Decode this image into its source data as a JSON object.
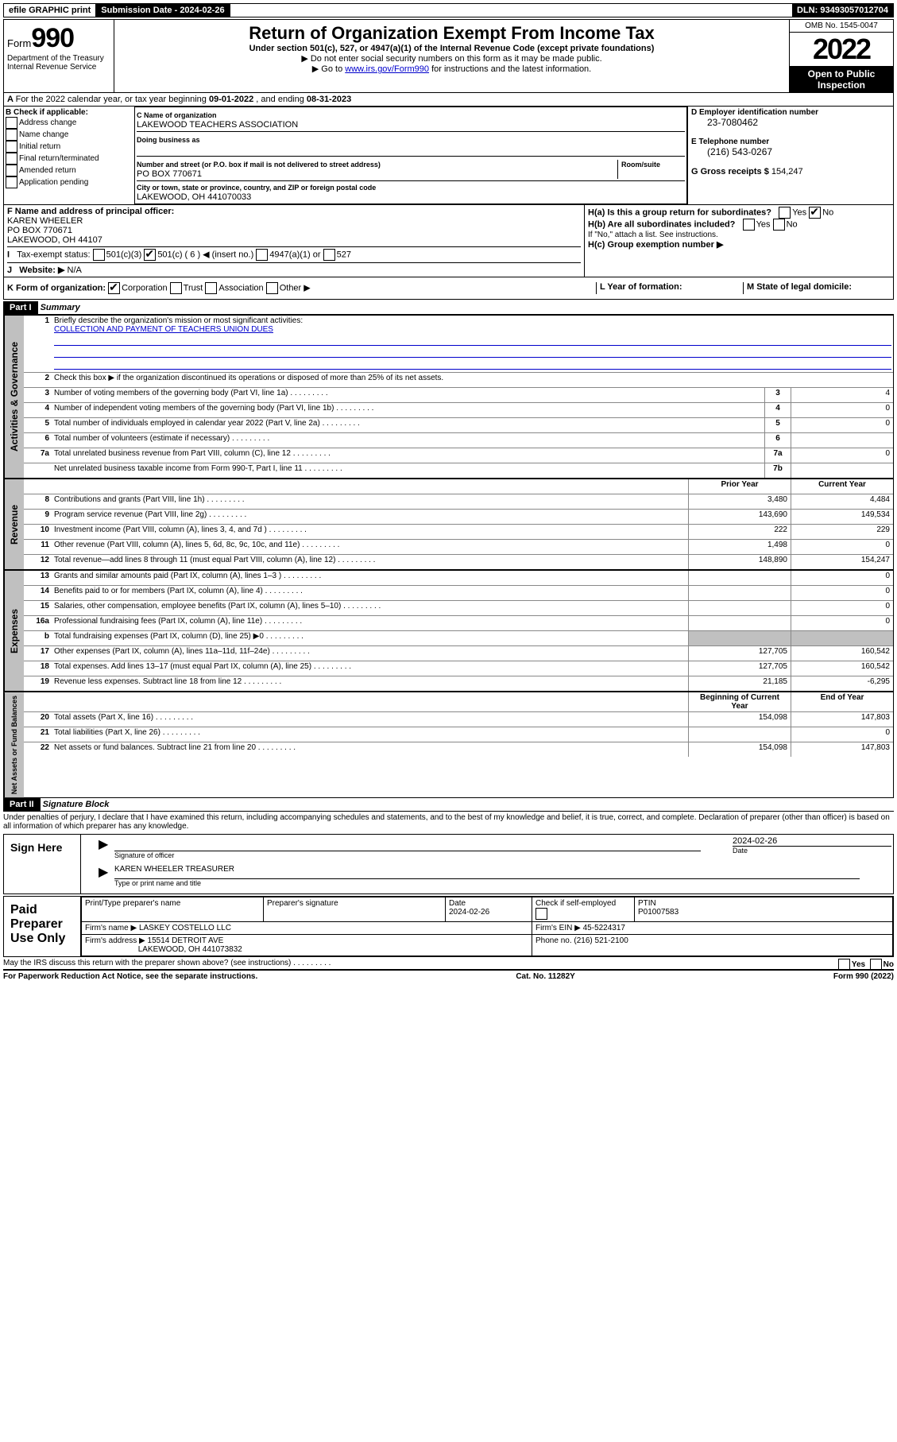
{
  "topbar": {
    "efile": "efile GRAPHIC print",
    "submission_label": "Submission Date - 2024-02-26",
    "dln_label": "DLN: 93493057012704"
  },
  "header": {
    "form_prefix": "Form",
    "form_number": "990",
    "title": "Return of Organization Exempt From Income Tax",
    "subtitle": "Under section 501(c), 527, or 4947(a)(1) of the Internal Revenue Code (except private foundations)",
    "instr1": "▶ Do not enter social security numbers on this form as it may be made public.",
    "instr2_pre": "▶ Go to ",
    "instr2_link": "www.irs.gov/Form990",
    "instr2_post": " for instructions and the latest information.",
    "dept": "Department of the Treasury Internal Revenue Service",
    "omb": "OMB No. 1545-0047",
    "year": "2022",
    "open": "Open to Public Inspection"
  },
  "section_a": {
    "text_pre": "For the 2022 calendar year, or tax year beginning ",
    "begin": "09-01-2022",
    "mid": " , and ending ",
    "end": "08-31-2023"
  },
  "col_b": {
    "label": "B Check if applicable:",
    "items": [
      "Address change",
      "Name change",
      "Initial return",
      "Final return/terminated",
      "Amended return",
      "Application pending"
    ]
  },
  "col_c": {
    "name_label": "C Name of organization",
    "name": "LAKEWOOD TEACHERS ASSOCIATION",
    "dba_label": "Doing business as",
    "addr_label": "Number and street (or P.O. box if mail is not delivered to street address)",
    "room_label": "Room/suite",
    "addr": "PO BOX 770671",
    "city_label": "City or town, state or province, country, and ZIP or foreign postal code",
    "city": "LAKEWOOD, OH  441070033"
  },
  "col_d": {
    "ein_label": "D Employer identification number",
    "ein": "23-7080462",
    "phone_label": "E Telephone number",
    "phone": "(216) 543-0267",
    "gross_label": "G Gross receipts $",
    "gross": "154,247"
  },
  "row_f": {
    "label": "F Name and address of principal officer:",
    "name": "KAREN WHEELER",
    "addr1": "PO BOX 770671",
    "addr2": "LAKEWOOD, OH  44107"
  },
  "row_h": {
    "ha": "H(a)  Is this a group return for subordinates?",
    "hb": "H(b)  Are all subordinates included?",
    "hb_note": "If \"No,\" attach a list. See instructions.",
    "hc": "H(c)  Group exemption number ▶",
    "yes": "Yes",
    "no": "No"
  },
  "row_i": {
    "label": "Tax-exempt status:",
    "o1": "501(c)(3)",
    "o2": "501(c) ( 6 ) ◀ (insert no.)",
    "o3": "4947(a)(1) or",
    "o4": "527"
  },
  "row_j": {
    "label": "Website: ▶",
    "val": "N/A"
  },
  "row_k": {
    "label": "K Form of organization:",
    "corp": "Corporation",
    "trust": "Trust",
    "assoc": "Association",
    "other": "Other ▶",
    "l_label": "L Year of formation:",
    "m_label": "M State of legal domicile:"
  },
  "part1": {
    "header": "Part I",
    "title": "Summary",
    "q1": "Briefly describe the organization's mission or most significant activities:",
    "q1_ans": "COLLECTION AND PAYMENT OF TEACHERS UNION DUES",
    "q2": "Check this box ▶     if the organization discontinued its operations or disposed of more than 25% of its net assets.",
    "rows_gov": [
      {
        "n": "3",
        "d": "Number of voting members of the governing body (Part VI, line 1a)",
        "b": "3",
        "v": "4"
      },
      {
        "n": "4",
        "d": "Number of independent voting members of the governing body (Part VI, line 1b)",
        "b": "4",
        "v": "0"
      },
      {
        "n": "5",
        "d": "Total number of individuals employed in calendar year 2022 (Part V, line 2a)",
        "b": "5",
        "v": "0"
      },
      {
        "n": "6",
        "d": "Total number of volunteers (estimate if necessary)",
        "b": "6",
        "v": ""
      },
      {
        "n": "7a",
        "d": "Total unrelated business revenue from Part VIII, column (C), line 12",
        "b": "7a",
        "v": "0"
      },
      {
        "n": "",
        "d": "Net unrelated business taxable income from Form 990-T, Part I, line 11",
        "b": "7b",
        "v": ""
      }
    ],
    "col_prior": "Prior Year",
    "col_current": "Current Year",
    "rows_rev": [
      {
        "n": "8",
        "d": "Contributions and grants (Part VIII, line 1h)",
        "p": "3,480",
        "c": "4,484"
      },
      {
        "n": "9",
        "d": "Program service revenue (Part VIII, line 2g)",
        "p": "143,690",
        "c": "149,534"
      },
      {
        "n": "10",
        "d": "Investment income (Part VIII, column (A), lines 3, 4, and 7d )",
        "p": "222",
        "c": "229"
      },
      {
        "n": "11",
        "d": "Other revenue (Part VIII, column (A), lines 5, 6d, 8c, 9c, 10c, and 11e)",
        "p": "1,498",
        "c": "0"
      },
      {
        "n": "12",
        "d": "Total revenue—add lines 8 through 11 (must equal Part VIII, column (A), line 12)",
        "p": "148,890",
        "c": "154,247"
      }
    ],
    "rows_exp": [
      {
        "n": "13",
        "d": "Grants and similar amounts paid (Part IX, column (A), lines 1–3 )",
        "p": "",
        "c": "0"
      },
      {
        "n": "14",
        "d": "Benefits paid to or for members (Part IX, column (A), line 4)",
        "p": "",
        "c": "0"
      },
      {
        "n": "15",
        "d": "Salaries, other compensation, employee benefits (Part IX, column (A), lines 5–10)",
        "p": "",
        "c": "0"
      },
      {
        "n": "16a",
        "d": "Professional fundraising fees (Part IX, column (A), line 11e)",
        "p": "",
        "c": "0"
      },
      {
        "n": "b",
        "d": "Total fundraising expenses (Part IX, column (D), line 25) ▶0",
        "p": "shaded",
        "c": "shaded"
      },
      {
        "n": "17",
        "d": "Other expenses (Part IX, column (A), lines 11a–11d, 11f–24e)",
        "p": "127,705",
        "c": "160,542"
      },
      {
        "n": "18",
        "d": "Total expenses. Add lines 13–17 (must equal Part IX, column (A), line 25)",
        "p": "127,705",
        "c": "160,542"
      },
      {
        "n": "19",
        "d": "Revenue less expenses. Subtract line 18 from line 12",
        "p": "21,185",
        "c": "-6,295"
      }
    ],
    "col_begin": "Beginning of Current Year",
    "col_end": "End of Year",
    "rows_net": [
      {
        "n": "20",
        "d": "Total assets (Part X, line 16)",
        "p": "154,098",
        "c": "147,803"
      },
      {
        "n": "21",
        "d": "Total liabilities (Part X, line 26)",
        "p": "",
        "c": "0"
      },
      {
        "n": "22",
        "d": "Net assets or fund balances. Subtract line 21 from line 20",
        "p": "154,098",
        "c": "147,803"
      }
    ],
    "side_gov": "Activities & Governance",
    "side_rev": "Revenue",
    "side_exp": "Expenses",
    "side_net": "Net Assets or Fund Balances"
  },
  "part2": {
    "header": "Part II",
    "title": "Signature Block",
    "penalties": "Under penalties of perjury, I declare that I have examined this return, including accompanying schedules and statements, and to the best of my knowledge and belief, it is true, correct, and complete. Declaration of preparer (other than officer) is based on all information of which preparer has any knowledge.",
    "sign_here": "Sign Here",
    "sig_officer": "Signature of officer",
    "sig_date_label": "Date",
    "sig_date": "2024-02-26",
    "sig_name": "KAREN WHEELER  TREASURER",
    "sig_name_label": "Type or print name and title",
    "paid_prep": "Paid Preparer Use Only",
    "prep_name_label": "Print/Type preparer's name",
    "prep_sig_label": "Preparer's signature",
    "prep_date_label": "Date",
    "prep_date": "2024-02-26",
    "self_emp": "Check       if self-employed",
    "ptin_label": "PTIN",
    "ptin": "P01007583",
    "firm_name_label": "Firm's name    ▶",
    "firm_name": "LASKEY COSTELLO LLC",
    "firm_ein_label": "Firm's EIN ▶",
    "firm_ein": "45-5224317",
    "firm_addr_label": "Firm's address ▶",
    "firm_addr1": "15514 DETROIT AVE",
    "firm_addr2": "LAKEWOOD, OH  441073832",
    "firm_phone_label": "Phone no.",
    "firm_phone": "(216) 521-2100",
    "discuss": "May the IRS discuss this return with the preparer shown above? (see instructions)"
  },
  "footer": {
    "left": "For Paperwork Reduction Act Notice, see the separate instructions.",
    "mid": "Cat. No. 11282Y",
    "right": "Form 990 (2022)"
  }
}
